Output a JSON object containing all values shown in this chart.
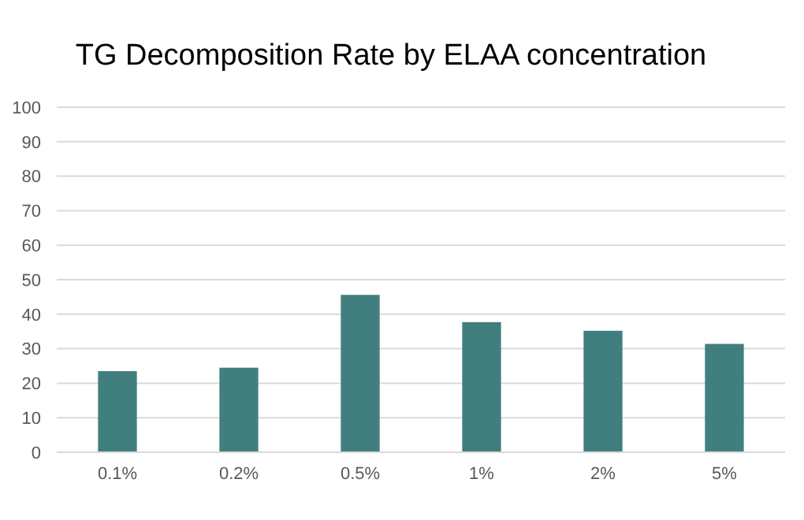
{
  "chart_data": {
    "type": "bar",
    "title": "TG Decomposition Rate by ELAA concentration",
    "categories": [
      "0.1%",
      "0.2%",
      "0.5%",
      "1%",
      "2%",
      "5%"
    ],
    "values": [
      23.5,
      24.5,
      45.6,
      37.7,
      35.2,
      31.4
    ],
    "color": "#417f7f",
    "ylim": [
      0,
      100
    ],
    "yticks": [
      0,
      10,
      20,
      30,
      40,
      50,
      60,
      70,
      80,
      90,
      100
    ],
    "grid": "y"
  }
}
